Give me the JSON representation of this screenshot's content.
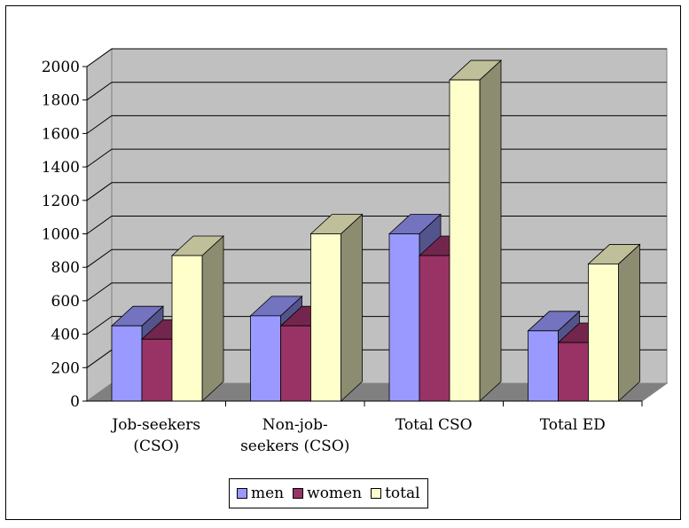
{
  "chart_data": {
    "type": "bar",
    "categories": [
      [
        "Job-seekers",
        "(CSO)"
      ],
      [
        "Non-job-",
        "seekers (CSO)"
      ],
      [
        "Total CSO"
      ],
      [
        "Total ED"
      ]
    ],
    "series": [
      {
        "name": "men",
        "values": [
          450,
          510,
          1000,
          420
        ]
      },
      {
        "name": "women",
        "values": [
          370,
          450,
          870,
          350
        ]
      },
      {
        "name": "total",
        "values": [
          870,
          1000,
          1920,
          820
        ]
      }
    ],
    "ylim": [
      0,
      2000
    ],
    "yticks": [
      "0",
      "200",
      "400",
      "600",
      "800",
      "1000",
      "1200",
      "1400",
      "1600",
      "1800",
      "2000"
    ],
    "grid": true,
    "legend_placement": "bottom",
    "colors": {
      "men": "#9999ff",
      "women": "#993366",
      "total": "#ffffcc",
      "wall": "#c0c0c0",
      "floor": "#808080"
    }
  }
}
